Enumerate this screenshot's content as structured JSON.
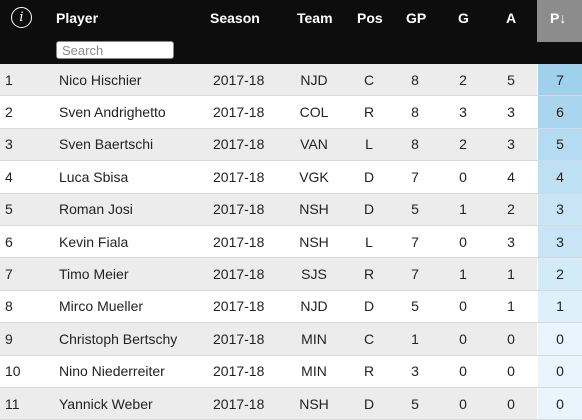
{
  "header": {
    "info_icon": "info-icon",
    "columns": {
      "player": "Player",
      "season": "Season",
      "team": "Team",
      "pos": "Pos",
      "gp": "GP",
      "g": "G",
      "a": "A",
      "p": "P↓"
    },
    "search_placeholder": "Search"
  },
  "colors": {
    "header_bg": "#0d0d0d",
    "sorted_header_bg": "#8c8c8c",
    "row_odd": "#ececec",
    "row_even": "#ffffff",
    "points_scale_max": "#9fd0ec",
    "points_scale_min": "#e8f5fc"
  },
  "rows": [
    {
      "rank": "1",
      "player": "Nico Hischier",
      "season": "2017-18",
      "team": "NJD",
      "pos": "C",
      "gp": "8",
      "g": "2",
      "a": "5",
      "p": "7"
    },
    {
      "rank": "2",
      "player": "Sven Andrighetto",
      "season": "2017-18",
      "team": "COL",
      "pos": "R",
      "gp": "8",
      "g": "3",
      "a": "3",
      "p": "6"
    },
    {
      "rank": "3",
      "player": "Sven Baertschi",
      "season": "2017-18",
      "team": "VAN",
      "pos": "L",
      "gp": "8",
      "g": "2",
      "a": "3",
      "p": "5"
    },
    {
      "rank": "4",
      "player": "Luca Sbisa",
      "season": "2017-18",
      "team": "VGK",
      "pos": "D",
      "gp": "7",
      "g": "0",
      "a": "4",
      "p": "4"
    },
    {
      "rank": "5",
      "player": "Roman Josi",
      "season": "2017-18",
      "team": "NSH",
      "pos": "D",
      "gp": "5",
      "g": "1",
      "a": "2",
      "p": "3"
    },
    {
      "rank": "6",
      "player": "Kevin Fiala",
      "season": "2017-18",
      "team": "NSH",
      "pos": "L",
      "gp": "7",
      "g": "0",
      "a": "3",
      "p": "3"
    },
    {
      "rank": "7",
      "player": "Timo Meier",
      "season": "2017-18",
      "team": "SJS",
      "pos": "R",
      "gp": "7",
      "g": "1",
      "a": "1",
      "p": "2"
    },
    {
      "rank": "8",
      "player": "Mirco Mueller",
      "season": "2017-18",
      "team": "NJD",
      "pos": "D",
      "gp": "5",
      "g": "0",
      "a": "1",
      "p": "1"
    },
    {
      "rank": "9",
      "player": "Christoph Bertschy",
      "season": "2017-18",
      "team": "MIN",
      "pos": "C",
      "gp": "1",
      "g": "0",
      "a": "0",
      "p": "0"
    },
    {
      "rank": "10",
      "player": "Nino Niederreiter",
      "season": "2017-18",
      "team": "MIN",
      "pos": "R",
      "gp": "3",
      "g": "0",
      "a": "0",
      "p": "0"
    },
    {
      "rank": "11",
      "player": "Yannick Weber",
      "season": "2017-18",
      "team": "NSH",
      "pos": "D",
      "gp": "5",
      "g": "0",
      "a": "0",
      "p": "0"
    }
  ]
}
